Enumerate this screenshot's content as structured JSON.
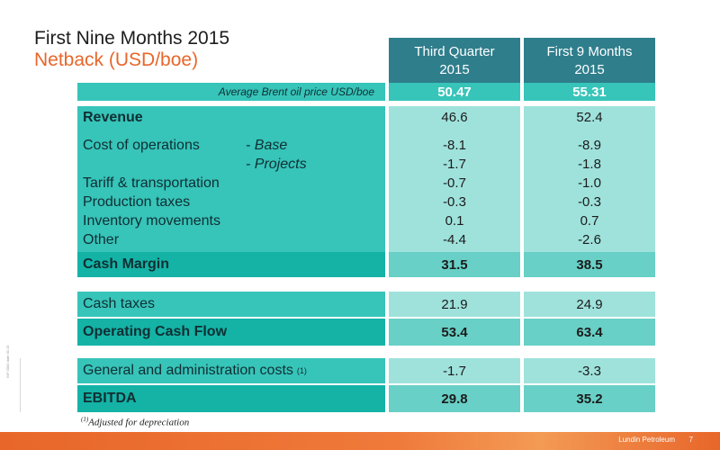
{
  "header": {
    "title": "First Nine Months 2015",
    "subtitle": "Netback (USD/boe)"
  },
  "columns": [
    {
      "line1": "Third Quarter",
      "line2": "2015"
    },
    {
      "line1": "First 9 Months",
      "line2": "2015"
    }
  ],
  "brent": {
    "label": "Average Brent oil price USD/boe",
    "values": [
      "50.47",
      "55.31"
    ]
  },
  "revenue": {
    "label": "Revenue",
    "values": [
      "46.6",
      "52.4"
    ]
  },
  "details": {
    "cost_label": "Cost of operations",
    "base_label": "- Base",
    "projects_label": "- Projects",
    "tariff_label": "Tariff & transportation",
    "production_label": "Production taxes",
    "inventory_label": "Inventory movements",
    "other_label": "Other",
    "col1": [
      "-8.1",
      "-1.7",
      "-0.7",
      "-0.3",
      "0.1",
      "-4.4"
    ],
    "col2": [
      "-8.9",
      "-1.8",
      "-1.0",
      "-0.3",
      "0.7",
      "-2.6"
    ]
  },
  "cash_margin": {
    "label": "Cash Margin",
    "values": [
      "31.5",
      "38.5"
    ]
  },
  "cash_taxes": {
    "label": "Cash taxes",
    "values": [
      "21.9",
      "24.9"
    ]
  },
  "operating_cf": {
    "label": "Operating Cash Flow",
    "values": [
      "53.4",
      "63.4"
    ]
  },
  "gna": {
    "label": "General and administration costs",
    "sup": "(1)",
    "values": [
      "-1.7",
      "-3.3"
    ]
  },
  "ebitda": {
    "label": "EBITDA",
    "values": [
      "29.8",
      "35.2"
    ]
  },
  "footnote": {
    "sup": "(1)",
    "text": "Adjusted for depreciation"
  },
  "footer": {
    "brand": "Lundin Petroleum",
    "page": "7"
  },
  "side_text": "INF 0000  date  00.15",
  "colors": {
    "teal_dark": "#2f7e8c",
    "teal": "#37c4b9",
    "teal_light": "#9fe2dc",
    "orange": "#e8662a"
  }
}
